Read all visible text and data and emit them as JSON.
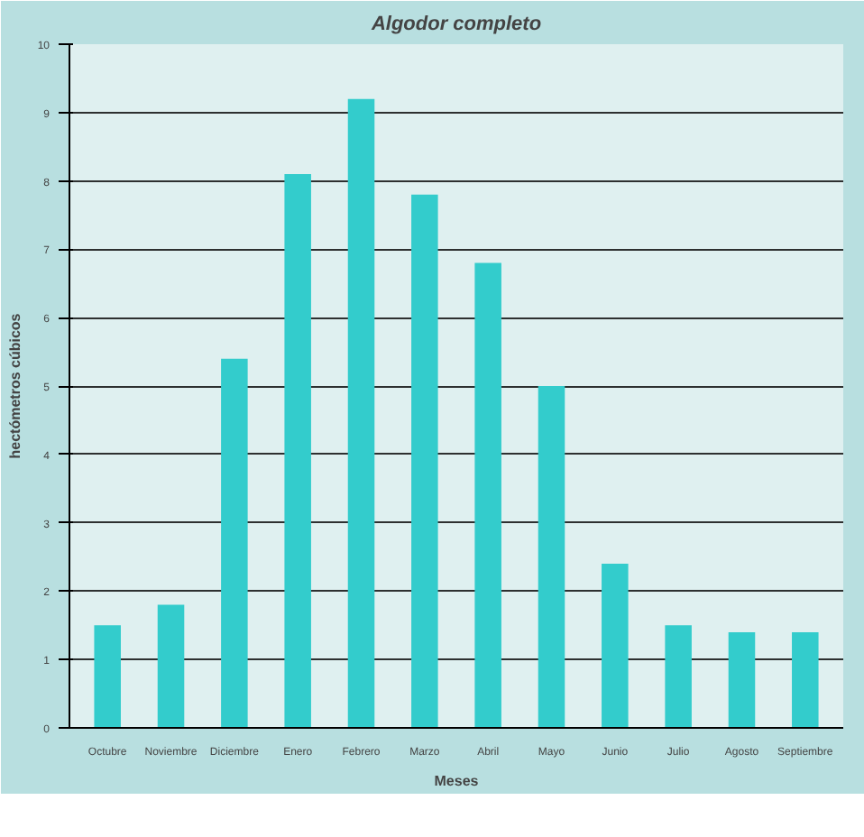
{
  "chart_data": {
    "type": "bar",
    "title": "Algodor completo",
    "xlabel": "Meses",
    "ylabel": "hectómetros cúbicos",
    "categories": [
      "Octubre",
      "Noviembre",
      "Diciembre",
      "Enero",
      "Febrero",
      "Marzo",
      "Abril",
      "Mayo",
      "Junio",
      "Julio",
      "Agosto",
      "Septiembre"
    ],
    "values": [
      1.5,
      1.8,
      5.4,
      8.1,
      9.2,
      7.8,
      6.8,
      5.0,
      2.4,
      1.5,
      1.4,
      1.4
    ],
    "color": "#33cccc",
    "ylim": [
      0,
      10
    ],
    "yticks": [
      0,
      1,
      2,
      3,
      4,
      5,
      6,
      7,
      8,
      9,
      10
    ],
    "grid": "y"
  }
}
